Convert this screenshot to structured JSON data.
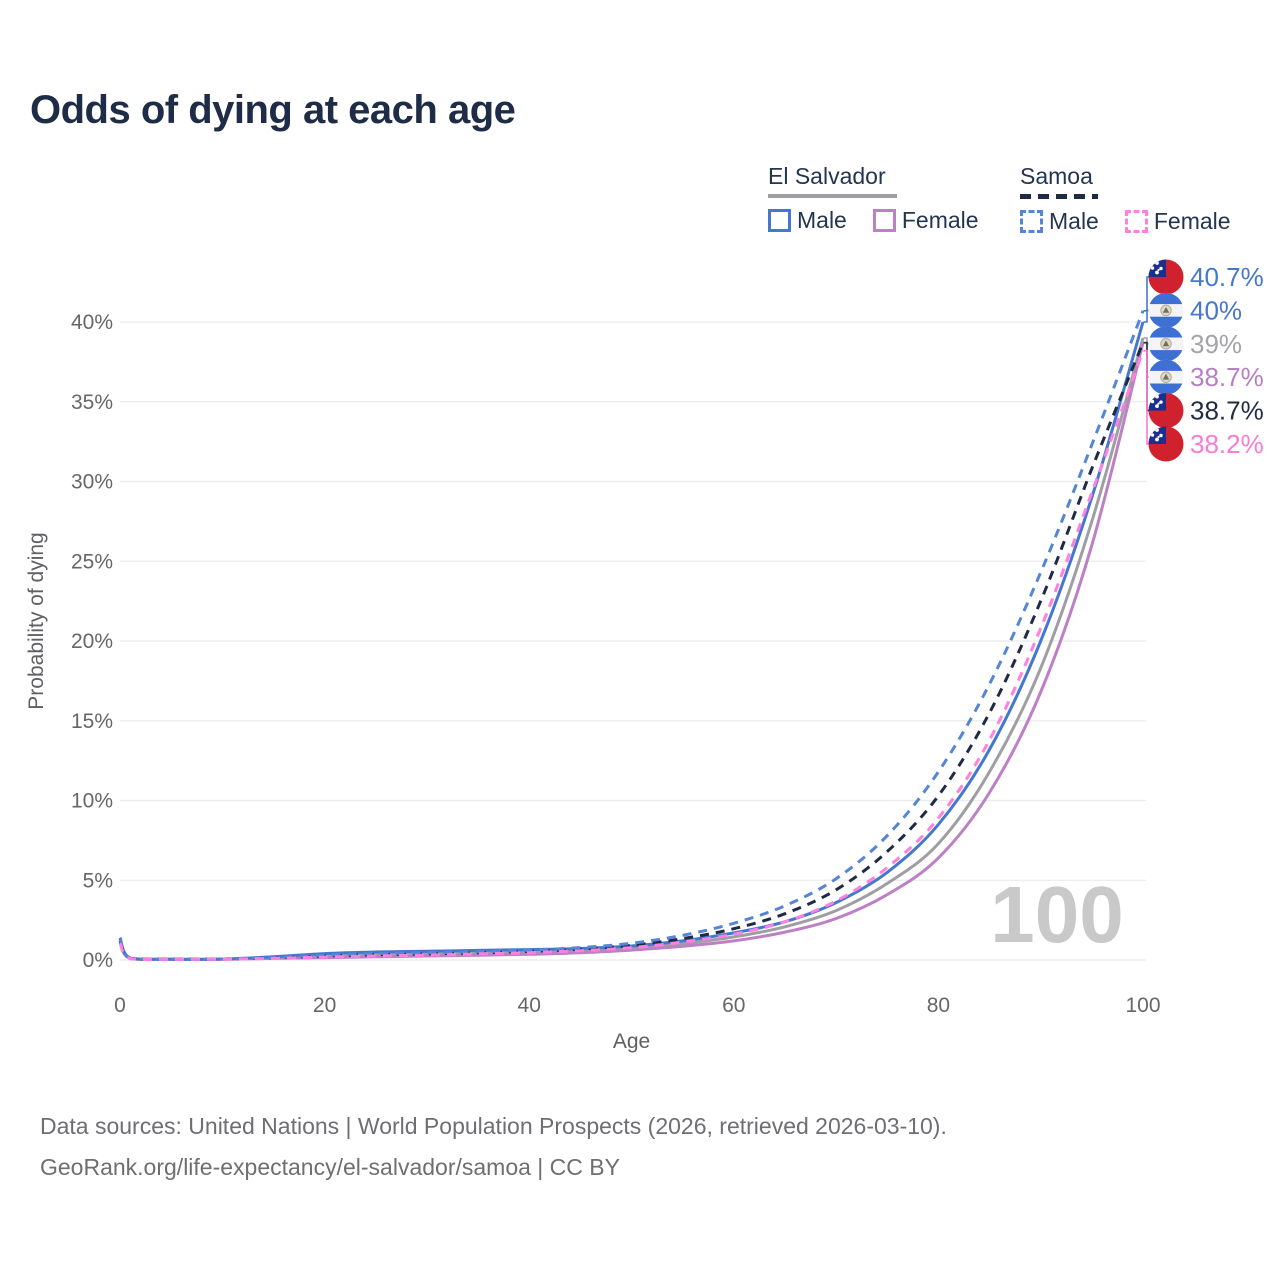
{
  "title": "Odds of dying at each age",
  "legend": {
    "groups": [
      {
        "id": "el-salvador",
        "label": "El Salvador",
        "line_style": "solid",
        "line_color": "#9e9ea3",
        "items": [
          {
            "label": "Male",
            "color": "#4577d1",
            "dash": false
          },
          {
            "label": "Female",
            "color": "#bd7fc6",
            "dash": false
          }
        ]
      },
      {
        "id": "samoa",
        "label": "Samoa",
        "line_style": "dashed",
        "line_color": "#1f2a44",
        "items": [
          {
            "label": "Male",
            "color": "#5585d6",
            "dash": true
          },
          {
            "label": "Female",
            "color": "#ff80df",
            "dash": true
          }
        ]
      }
    ]
  },
  "chart_data": {
    "type": "line",
    "title": "Odds of dying at each age",
    "xlabel": "Age",
    "ylabel": "Probability of dying",
    "x_ticks": [
      0,
      20,
      40,
      60,
      80,
      100
    ],
    "y_ticks_percent": [
      0,
      5,
      10,
      15,
      20,
      25,
      30,
      35,
      40
    ],
    "xlim": [
      0,
      100
    ],
    "ylim_percent": [
      0,
      42
    ],
    "grid": "horizontal",
    "watermark": "100",
    "ages": [
      0,
      1,
      5,
      10,
      15,
      20,
      25,
      30,
      35,
      40,
      45,
      50,
      55,
      60,
      65,
      70,
      75,
      80,
      85,
      90,
      95,
      100
    ],
    "series": [
      {
        "id": "el-salvador-all",
        "name": "El Salvador (both sexes)",
        "country": "El Salvador",
        "sex": "both",
        "color": "#9e9ea3",
        "dash": false,
        "values_percent": [
          1.25,
          0.1,
          0.05,
          0.05,
          0.15,
          0.28,
          0.35,
          0.4,
          0.45,
          0.51,
          0.59,
          0.75,
          1.03,
          1.45,
          2.08,
          3.1,
          4.8,
          7.3,
          11.8,
          18.3,
          27.5,
          39.0
        ]
      },
      {
        "id": "el-salvador-female",
        "name": "El Salvador Female",
        "country": "El Salvador",
        "sex": "female",
        "color": "#bd7fc6",
        "dash": false,
        "values_percent": [
          1.1,
          0.09,
          0.04,
          0.04,
          0.1,
          0.15,
          0.2,
          0.25,
          0.3,
          0.36,
          0.46,
          0.62,
          0.86,
          1.2,
          1.75,
          2.6,
          4.1,
          6.4,
          10.5,
          16.8,
          26.0,
          38.7
        ]
      },
      {
        "id": "el-salvador-male",
        "name": "El Salvador Male",
        "country": "El Salvador",
        "sex": "male",
        "color": "#4577d1",
        "dash": false,
        "values_percent": [
          1.4,
          0.12,
          0.05,
          0.06,
          0.2,
          0.4,
          0.5,
          0.55,
          0.6,
          0.65,
          0.72,
          0.88,
          1.2,
          1.7,
          2.4,
          3.6,
          5.5,
          8.5,
          13.2,
          20.0,
          29.0,
          40.0
        ]
      },
      {
        "id": "samoa-all",
        "name": "Samoa (both sexes)",
        "country": "Samoa",
        "sex": "both",
        "color": "#1f2a44",
        "dash": true,
        "values_percent": [
          1.2,
          0.1,
          0.05,
          0.06,
          0.13,
          0.25,
          0.33,
          0.38,
          0.45,
          0.54,
          0.68,
          0.92,
          1.34,
          1.96,
          2.9,
          4.4,
          6.8,
          10.3,
          15.5,
          22.5,
          30.8,
          38.7
        ]
      },
      {
        "id": "samoa-male",
        "name": "Samoa Male",
        "country": "Samoa",
        "sex": "male",
        "color": "#5585d6",
        "dash": true,
        "values_percent": [
          1.3,
          0.1,
          0.05,
          0.06,
          0.15,
          0.3,
          0.4,
          0.45,
          0.52,
          0.62,
          0.78,
          1.05,
          1.55,
          2.3,
          3.4,
          5.1,
          7.8,
          11.8,
          17.3,
          24.3,
          32.3,
          40.7
        ]
      },
      {
        "id": "samoa-female",
        "name": "Samoa Female",
        "country": "Samoa",
        "sex": "female",
        "color": "#ff80df",
        "dash": true,
        "values_percent": [
          1.05,
          0.09,
          0.04,
          0.05,
          0.1,
          0.18,
          0.25,
          0.3,
          0.38,
          0.46,
          0.58,
          0.78,
          1.12,
          1.62,
          2.4,
          3.7,
          5.8,
          8.9,
          13.8,
          20.8,
          29.3,
          38.2
        ]
      }
    ],
    "end_labels": [
      {
        "text": "40.7%",
        "value": 40.7,
        "color": "#4577d1",
        "flag": "samoa",
        "series": "samoa-male"
      },
      {
        "text": "40%",
        "value": 40.0,
        "color": "#4577d1",
        "flag": "el-salvador",
        "series": "el-salvador-male"
      },
      {
        "text": "39%",
        "value": 39.0,
        "color": "#a3a3a8",
        "flag": "el-salvador",
        "series": "el-salvador-all"
      },
      {
        "text": "38.7%",
        "value": 38.7,
        "color": "#b77fc4",
        "flag": "el-salvador",
        "series": "el-salvador-female"
      },
      {
        "text": "38.7%",
        "value": 38.7,
        "color": "#222d43",
        "flag": "samoa",
        "series": "samoa-all"
      },
      {
        "text": "38.2%",
        "value": 38.2,
        "color": "#fb7ad6",
        "flag": "samoa",
        "series": "samoa-female"
      }
    ],
    "flag_colors": {
      "samoa_red": "#d0212e",
      "samoa_blue": "#1c2f8f",
      "el_salvador_blue": "#3e6fd2",
      "el_salvador_white": "#f4f4f4"
    },
    "watermark_color": "#c9c9c9",
    "gridline_color": "#ebebee",
    "tick_label_color": "#66666b"
  },
  "footer": {
    "line1": "Data sources: United Nations | World Population Prospects (2026, retrieved 2026-03-10).",
    "line2": "GeoRank.org/life-expectancy/el-salvador/samoa | CC BY"
  }
}
